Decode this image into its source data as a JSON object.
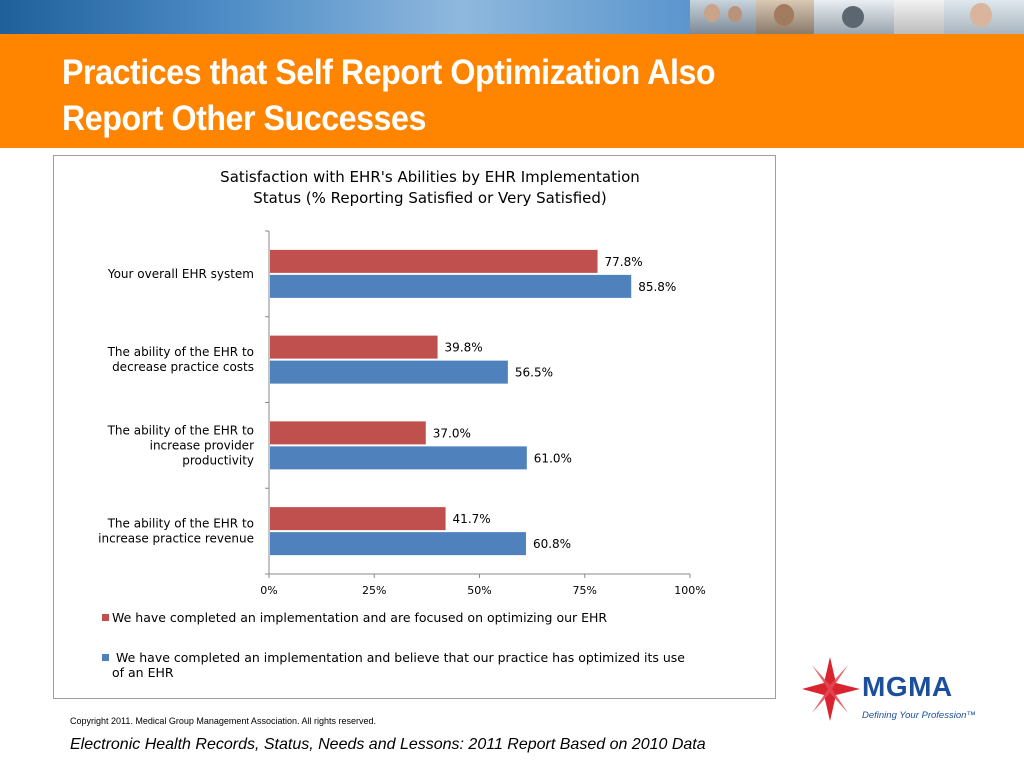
{
  "slide": {
    "title_line1": "Practices that Self Report Optimization Also",
    "title_line2": "Report Other Successes",
    "copyright": "Copyright 2011. Medical Group Management Association. All rights reserved.",
    "source": "Electronic Health Records, Status, Needs and Lessons: 2011 Report Based on 2010 Data"
  },
  "logo": {
    "name": "MGMA",
    "tagline": "Defining Your Profession™"
  },
  "colors": {
    "header_orange": "#ff8400",
    "series_optimizing": "#c0504d",
    "series_optimized": "#4f81bd"
  },
  "chart_data": {
    "type": "bar",
    "orientation": "horizontal",
    "title_line1": "Satisfaction with EHR's Abilities by EHR Implementation",
    "title_line2": "Status (%  Reporting Satisfied or Very Satisfied)",
    "categories": [
      [
        "Your overall EHR system"
      ],
      [
        "The ability of the EHR to",
        "decrease practice costs"
      ],
      [
        "The ability of the EHR to",
        "increase provider",
        "productivity"
      ],
      [
        "The ability of the EHR to",
        "increase practice revenue"
      ]
    ],
    "series": [
      {
        "name": "We have completed an implementation and are focused on optimizing our EHR",
        "legend_lines": [
          "We have completed an implementation and are focused on optimizing our EHR"
        ],
        "values": [
          77.8,
          39.8,
          37.0,
          41.7
        ],
        "labels": [
          "77.8%",
          "39.8%",
          "37.0%",
          "41.7%"
        ],
        "color": "#c0504d"
      },
      {
        "name": "We have completed an implementation and believe that our practice has optimized its use of an EHR",
        "legend_lines": [
          " We have completed an implementation and believe that our practice has optimized its use",
          "of an EHR"
        ],
        "values": [
          85.8,
          56.5,
          61.0,
          60.8
        ],
        "labels": [
          "85.8%",
          "56.5%",
          "61.0%",
          "60.8%"
        ],
        "color": "#4f81bd"
      }
    ],
    "xlim": [
      0,
      100
    ],
    "xticks": [
      0,
      25,
      50,
      75,
      100
    ],
    "xtick_labels": [
      "0%",
      "25%",
      "50%",
      "75%",
      "100%"
    ],
    "grid": false,
    "legend_position": "bottom"
  }
}
